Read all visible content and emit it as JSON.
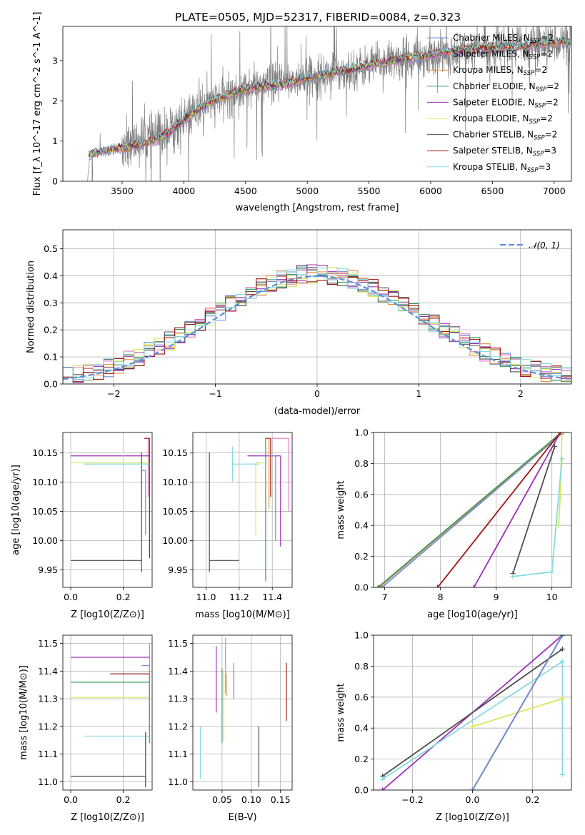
{
  "figure": {
    "title": "PLATE=0505, MJD=52317, FIBERID=0084, z=0.323"
  },
  "colors": {
    "data": "#7f7f7f",
    "gaussian": "#5b8fd6",
    "Chabrier MILES": "#6b8fd9",
    "Salpeter MILES": "#e377c2",
    "Kroupa MILES": "#ee8a3a",
    "Chabrier ELODIE": "#3a9a5c",
    "Salpeter ELODIE": "#9b30b5",
    "Kroupa ELODIE": "#d6e75a",
    "Chabrier STELIB": "#4d4d4d",
    "Salpeter STELIB": "#a11414",
    "Kroupa STELIB": "#86dbdf"
  },
  "chart_data": [
    {
      "id": "spectrum",
      "type": "line",
      "title": "PLATE=0505, MJD=52317, FIBERID=0084, z=0.323",
      "xlabel": "wavelength [Angstrom, rest frame]",
      "ylabel": "Flux [f_λ 10^-17 erg cm^-2 s^-1 A^-1]",
      "xlim": [
        3020,
        7140
      ],
      "ylim": [
        0,
        3.85
      ],
      "xticks": [
        3500,
        4000,
        4500,
        5000,
        5500,
        6000,
        6500,
        7000
      ],
      "yticks": [
        0,
        1,
        2,
        3
      ],
      "grid": false,
      "legend": "top-right",
      "data_shape": [
        [
          3220,
          0.0
        ],
        [
          3240,
          0.7
        ],
        [
          3400,
          0.8
        ],
        [
          3600,
          0.95
        ],
        [
          3800,
          1.15
        ],
        [
          4000,
          1.5
        ],
        [
          4200,
          1.95
        ],
        [
          4400,
          2.2
        ],
        [
          4600,
          2.35
        ],
        [
          4800,
          2.45
        ],
        [
          5000,
          2.6
        ],
        [
          5200,
          2.7
        ],
        [
          5400,
          2.8
        ],
        [
          5600,
          2.95
        ],
        [
          5800,
          3.05
        ],
        [
          6000,
          3.1
        ],
        [
          6200,
          3.2
        ],
        [
          6400,
          3.3
        ],
        [
          6600,
          3.35
        ],
        [
          6800,
          3.38
        ],
        [
          7000,
          3.45
        ],
        [
          7140,
          3.45
        ]
      ],
      "model_shape": [
        [
          3220,
          0.65
        ],
        [
          3400,
          0.78
        ],
        [
          3600,
          0.88
        ],
        [
          3800,
          1.05
        ],
        [
          3900,
          1.25
        ],
        [
          4000,
          1.55
        ],
        [
          4100,
          1.75
        ],
        [
          4200,
          1.95
        ],
        [
          4400,
          2.2
        ],
        [
          4600,
          2.35
        ],
        [
          4800,
          2.4
        ],
        [
          5000,
          2.55
        ],
        [
          5200,
          2.7
        ],
        [
          5400,
          2.8
        ],
        [
          5600,
          2.95
        ],
        [
          5800,
          3.05
        ],
        [
          6000,
          3.15
        ],
        [
          6200,
          3.25
        ],
        [
          6400,
          3.3
        ],
        [
          6600,
          3.35
        ],
        [
          6800,
          3.38
        ],
        [
          7000,
          3.45
        ],
        [
          7140,
          3.45
        ]
      ],
      "series": [
        {
          "name": "Chabrier MILES, N_SSP=2",
          "label_main": "Chabrier MILES, N",
          "label_sub": "SSP",
          "label_end": "=2"
        },
        {
          "name": "Salpeter MILES, N_SSP=2",
          "label_main": "Salpeter MILES, N",
          "label_sub": "SSP",
          "label_end": "=2"
        },
        {
          "name": "Kroupa MILES, N_SSP=2",
          "label_main": "Kroupa MILES, N",
          "label_sub": "SSP",
          "label_end": "=2"
        },
        {
          "name": "Chabrier ELODIE, N_SSP=2",
          "label_main": "Chabrier ELODIE, N",
          "label_sub": "SSP",
          "label_end": "=2"
        },
        {
          "name": "Salpeter ELODIE, N_SSP=2",
          "label_main": "Salpeter ELODIE, N",
          "label_sub": "SSP",
          "label_end": "=2"
        },
        {
          "name": "Kroupa ELODIE, N_SSP=2",
          "label_main": "Kroupa ELODIE, N",
          "label_sub": "SSP",
          "label_end": "=2"
        },
        {
          "name": "Chabrier STELIB, N_SSP=2",
          "label_main": "Chabrier STELIB, N",
          "label_sub": "SSP",
          "label_end": "=2"
        },
        {
          "name": "Salpeter STELIB, N_SSP=3",
          "label_main": "Salpeter STELIB, N",
          "label_sub": "SSP",
          "label_end": "=3"
        },
        {
          "name": "Kroupa STELIB, N_SSP=3",
          "label_main": "Kroupa STELIB, N",
          "label_sub": "SSP",
          "label_end": "=3"
        }
      ]
    },
    {
      "id": "residuals",
      "type": "line",
      "xlabel": "(data-model)/error",
      "ylabel": "Normed distribution",
      "xlim": [
        -2.5,
        2.5
      ],
      "ylim": [
        0,
        0.57
      ],
      "xticks": [
        -2,
        -1,
        0,
        1,
        2
      ],
      "yticks": [
        0.0,
        0.1,
        0.2,
        0.3,
        0.4,
        0.5
      ],
      "grid": true,
      "legend": "top-right",
      "legend_label": "𝒩(0, 1)",
      "bin_width": 0.1,
      "gaussian": {
        "mean": 0,
        "sigma": 1
      }
    },
    {
      "id": "age-vs-Z",
      "type": "scatter",
      "xlabel": "Z [log10(Z/Z⊙)]",
      "ylabel": "age [log10(age/yr)]",
      "xlim": [
        -0.03,
        0.31
      ],
      "ylim": [
        9.92,
        10.185
      ],
      "xticks": [
        0.0,
        0.2
      ],
      "yticks": [
        9.95,
        10.0,
        10.05,
        10.1,
        10.15
      ],
      "grid": true,
      "points": [
        {
          "series": "Chabrier MILES",
          "x": 0.285,
          "y": 10.12,
          "xerr": [
            0.015,
            0.0
          ],
          "yerr": [
            0.11,
            0.0
          ]
        },
        {
          "series": "Salpeter MILES",
          "x": 0.295,
          "y": 10.175,
          "xerr": [
            0.005,
            0.005
          ],
          "yerr": [
            0.1,
            0.0
          ]
        },
        {
          "series": "Kroupa MILES",
          "x": 0.3,
          "y": 10.13,
          "xerr": [
            0.0,
            0.0
          ],
          "yerr": [
            0.0,
            0.0
          ]
        },
        {
          "series": "Chabrier ELODIE",
          "x": 0.3,
          "y": 10.13,
          "xerr": [
            0.0,
            0.0
          ],
          "yerr": [
            0.0,
            0.0
          ]
        },
        {
          "series": "Salpeter ELODIE",
          "x": 0.3,
          "y": 10.145,
          "xerr": [
            0.3,
            0.0
          ],
          "yerr": [
            0.0,
            0.0
          ]
        },
        {
          "series": "Kroupa ELODIE",
          "x": 0.3,
          "y": 10.133,
          "xerr": [
            0.3,
            0.0
          ],
          "yerr": [
            0.0,
            0.0
          ]
        },
        {
          "series": "Chabrier STELIB",
          "x": 0.27,
          "y": 9.966,
          "xerr": [
            0.27,
            0.0
          ],
          "yerr": [
            0.02,
            0.185
          ]
        },
        {
          "series": "Salpeter STELIB",
          "x": 0.3,
          "y": 10.175,
          "xerr": [
            0.02,
            0.0
          ],
          "yerr": [
            0.205,
            0.0
          ]
        },
        {
          "series": "Kroupa STELIB",
          "x": 0.3,
          "y": 10.131,
          "xerr": [
            0.25,
            0.0
          ],
          "yerr": [
            0.0,
            0.0
          ]
        },
        {
          "series": "Kroupa ELODIE",
          "x": 0.2,
          "y": 10.12,
          "xerr": [
            0.0,
            0.0
          ],
          "yerr": [
            0.11,
            0.06
          ]
        }
      ]
    },
    {
      "id": "age-vs-mass",
      "type": "scatter",
      "xlabel": "mass [log10(M/M⊙)]",
      "ylabel": "",
      "xlim": [
        10.92,
        11.52
      ],
      "ylim": [
        9.92,
        10.185
      ],
      "xticks": [
        11.0,
        11.2,
        11.4
      ],
      "yticks": [
        9.95,
        10.0,
        10.05,
        10.1,
        10.15
      ],
      "grid": true,
      "points": [
        {
          "series": "Chabrier STELIB",
          "x": 11.02,
          "y": 9.966,
          "xerr": [
            0.0,
            0.18
          ],
          "yerr": [
            0.02,
            0.185
          ]
        },
        {
          "series": "Kroupa STELIB",
          "x": 11.16,
          "y": 10.131,
          "xerr": [
            0.0,
            0.16
          ],
          "yerr": [
            0.03,
            0.03
          ]
        },
        {
          "series": "Chabrier ELODIE",
          "x": 11.36,
          "y": 10.13,
          "xerr": [
            0.0,
            0.0
          ],
          "yerr": [
            0.2,
            0.045
          ]
        },
        {
          "series": "Kroupa ELODIE",
          "x": 11.3,
          "y": 10.133,
          "xerr": [
            0.0,
            0.05
          ],
          "yerr": [
            0.123,
            0.0
          ]
        },
        {
          "series": "Salpeter ELODIE",
          "x": 11.45,
          "y": 10.145,
          "xerr": [
            0.2,
            0.0
          ],
          "yerr": [
            0.155,
            0.0
          ]
        },
        {
          "series": "Salpeter STELIB",
          "x": 11.39,
          "y": 10.175,
          "xerr": [
            0.03,
            0.0
          ],
          "yerr": [
            0.1,
            0.0
          ]
        },
        {
          "series": "Salpeter MILES",
          "x": 11.5,
          "y": 10.175,
          "xerr": [
            0.1,
            0.0
          ],
          "yerr": [
            0.125,
            0.0
          ]
        },
        {
          "series": "Chabrier MILES",
          "x": 11.42,
          "y": 10.145,
          "xerr": [
            0.04,
            0.0
          ],
          "yerr": [
            0.145,
            0.0
          ]
        },
        {
          "series": "Kroupa MILES",
          "x": 11.38,
          "y": 10.135,
          "xerr": [
            0.0,
            0.0
          ],
          "yerr": [
            0.08,
            0.04
          ]
        }
      ]
    },
    {
      "id": "mass-weight-vs-age",
      "type": "line",
      "xlabel": "age [log10(age/yr)]",
      "ylabel": "mass weight",
      "xlim": [
        6.8,
        10.35
      ],
      "ylim": [
        0,
        1.0
      ],
      "xticks": [
        7,
        8,
        9,
        10
      ],
      "yticks": [
        0.0,
        0.2,
        0.4,
        0.6,
        0.8,
        1.0
      ],
      "grid": true,
      "series": [
        {
          "name": "Chabrier MILES",
          "x": [
            6.95,
            10.2
          ],
          "y": [
            0.0,
            1.0
          ]
        },
        {
          "name": "Salpeter MILES",
          "x": [
            6.9,
            10.18
          ],
          "y": [
            0.0,
            1.0
          ]
        },
        {
          "name": "Kroupa MILES",
          "x": [
            6.9,
            10.18
          ],
          "y": [
            0.0,
            1.0
          ]
        },
        {
          "name": "Chabrier ELODIE",
          "x": [
            6.88,
            10.17
          ],
          "y": [
            0.0,
            1.0
          ]
        },
        {
          "name": "Salpeter ELODIE",
          "x": [
            8.6,
            10.15
          ],
          "y": [
            0.0,
            1.0
          ]
        },
        {
          "name": "Kroupa ELODIE",
          "x": [
            10.12,
            10.15,
            10.18
          ],
          "y": [
            0.4,
            0.6,
            1.0
          ]
        },
        {
          "name": "Chabrier STELIB",
          "x": [
            9.3,
            10.05
          ],
          "y": [
            0.09,
            0.91
          ]
        },
        {
          "name": "Salpeter STELIB",
          "x": [
            7.95,
            10.15
          ],
          "y": [
            0.0,
            1.0
          ]
        },
        {
          "name": "Kroupa STELIB",
          "x": [
            9.3,
            10.0,
            10.18
          ],
          "y": [
            0.07,
            0.1,
            0.83
          ]
        }
      ]
    },
    {
      "id": "mass-vs-Z",
      "type": "scatter",
      "xlabel": "Z [log10(Z/Z⊙)]",
      "ylabel": "mass [log10(M/M⊙)]",
      "xlim": [
        -0.03,
        0.31
      ],
      "ylim": [
        10.97,
        11.53
      ],
      "xticks": [
        0.0,
        0.2
      ],
      "yticks": [
        11.0,
        11.1,
        11.2,
        11.3,
        11.4,
        11.5
      ],
      "grid": true,
      "points": [
        {
          "series": "Salpeter ELODIE",
          "x": 0.3,
          "y": 11.45,
          "xerr": [
            0.3,
            0.0
          ],
          "yerr": [
            0.0,
            0.0
          ]
        },
        {
          "series": "Salpeter STELIB",
          "x": 0.3,
          "y": 11.39,
          "xerr": [
            0.15,
            0.0
          ],
          "yerr": [
            0.17,
            0.0
          ]
        },
        {
          "series": "Chabrier ELODIE",
          "x": 0.3,
          "y": 11.36,
          "xerr": [
            0.3,
            0.0
          ],
          "yerr": [
            0.22,
            0.0
          ]
        },
        {
          "series": "Kroupa ELODIE",
          "x": 0.3,
          "y": 11.305,
          "xerr": [
            0.3,
            0.0
          ],
          "yerr": [
            0.0,
            0.0
          ]
        },
        {
          "series": "Kroupa STELIB",
          "x": 0.3,
          "y": 11.165,
          "xerr": [
            0.25,
            0.0
          ],
          "yerr": [
            0.0,
            0.0
          ]
        },
        {
          "series": "Chabrier STELIB",
          "x": 0.285,
          "y": 11.02,
          "xerr": [
            0.285,
            0.0
          ],
          "yerr": [
            0.04,
            0.16
          ]
        },
        {
          "series": "Chabrier MILES",
          "x": 0.3,
          "y": 11.42,
          "xerr": [
            0.03,
            0.0
          ],
          "yerr": [
            0.28,
            0.0
          ]
        },
        {
          "series": "Salpeter MILES",
          "x": 0.3,
          "y": 11.5,
          "xerr": [
            0.0,
            0.0
          ],
          "yerr": [
            0.1,
            0.0
          ]
        },
        {
          "series": "Kroupa ELODIE",
          "x": 0.2,
          "y": 11.305,
          "xerr": [
            0.0,
            0.0
          ],
          "yerr": [
            0.1,
            0.0
          ]
        }
      ]
    },
    {
      "id": "mass-vs-EBV",
      "type": "scatter",
      "xlabel": "E(B-V)",
      "ylabel": "",
      "xlim": [
        0.0,
        0.17
      ],
      "ylim": [
        10.97,
        11.53
      ],
      "xticks": [
        0.05,
        0.1,
        0.15
      ],
      "yticks": [
        11.0,
        11.1,
        11.2,
        11.3,
        11.4,
        11.5
      ],
      "grid": true,
      "points": [
        {
          "series": "Kroupa STELIB",
          "x": 0.013,
          "y": 11.1,
          "yerr": [
            0.09,
            0.1
          ]
        },
        {
          "series": "Salpeter ELODIE",
          "x": 0.04,
          "y": 11.37,
          "yerr": [
            0.12,
            0.12
          ]
        },
        {
          "series": "Chabrier ELODIE",
          "x": 0.05,
          "y": 11.28,
          "yerr": [
            0.14,
            0.13
          ]
        },
        {
          "series": "Kroupa ELODIE",
          "x": 0.053,
          "y": 11.27,
          "yerr": [
            0.12,
            0.13
          ]
        },
        {
          "series": "Salpeter MILES",
          "x": 0.056,
          "y": 11.42,
          "yerr": [
            0.1,
            0.1
          ]
        },
        {
          "series": "Kroupa MILES",
          "x": 0.057,
          "y": 11.35,
          "yerr": [
            0.04,
            0.04
          ]
        },
        {
          "series": "Chabrier MILES",
          "x": 0.07,
          "y": 11.36,
          "yerr": [
            0.06,
            0.07
          ]
        },
        {
          "series": "Chabrier STELIB",
          "x": 0.113,
          "y": 11.09,
          "yerr": [
            0.11,
            0.11
          ]
        },
        {
          "series": "Salpeter STELIB",
          "x": 0.16,
          "y": 11.33,
          "yerr": [
            0.11,
            0.1
          ]
        }
      ]
    },
    {
      "id": "mass-weight-vs-Z",
      "type": "line",
      "xlabel": "Z [log10(Z/Z⊙)]",
      "ylabel": "mass weight",
      "xlim": [
        -0.33,
        0.33
      ],
      "ylim": [
        0,
        1.0
      ],
      "xticks": [
        -0.2,
        0.0,
        0.2
      ],
      "yticks": [
        0.0,
        0.2,
        0.4,
        0.6,
        0.8,
        1.0
      ],
      "grid": true,
      "series": [
        {
          "name": "Salpeter ELODIE",
          "x": [
            -0.3,
            0.3
          ],
          "y": [
            0.0,
            1.0
          ]
        },
        {
          "name": "Chabrier STELIB",
          "x": [
            -0.3,
            0.3
          ],
          "y": [
            0.09,
            0.91
          ]
        },
        {
          "name": "Kroupa STELIB",
          "x": [
            -0.3,
            0.3,
            0.3
          ],
          "y": [
            0.07,
            0.83,
            0.1
          ]
        },
        {
          "name": "Kroupa ELODIE",
          "x": [
            0.0,
            0.3
          ],
          "y": [
            0.41,
            0.59
          ]
        },
        {
          "name": "Salpeter STELIB",
          "x": [
            0.0,
            0.3
          ],
          "y": [
            0.0,
            1.0
          ]
        },
        {
          "name": "Chabrier MILES",
          "x": [
            0.0,
            0.3
          ],
          "y": [
            0.0,
            1.0
          ]
        },
        {
          "name": "Salpeter MILES",
          "x": [
            0.3
          ],
          "y": [
            1.0
          ]
        },
        {
          "name": "Kroupa MILES",
          "x": [
            0.3
          ],
          "y": [
            1.0
          ]
        },
        {
          "name": "Chabrier ELODIE",
          "x": [
            0.3
          ],
          "y": [
            1.0
          ]
        }
      ]
    }
  ]
}
